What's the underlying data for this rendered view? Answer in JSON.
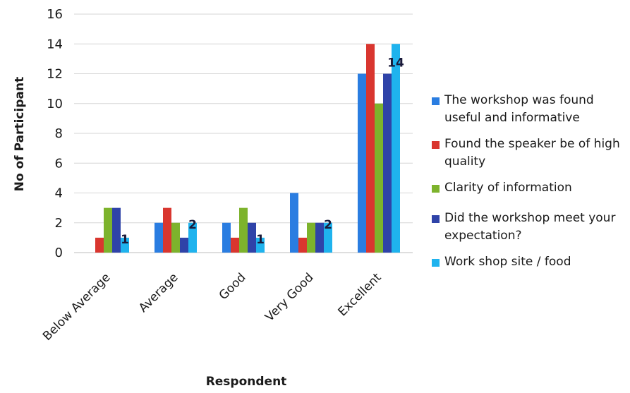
{
  "chart_data": {
    "type": "bar",
    "title": "",
    "xlabel": "Respondent",
    "ylabel": "No of Participant",
    "ylim": [
      0,
      16
    ],
    "yticks": [
      0,
      2,
      4,
      6,
      8,
      10,
      12,
      14,
      16
    ],
    "categories": [
      "Below Average",
      "Average",
      "Good",
      "Very Good",
      "Excellent"
    ],
    "series": [
      {
        "name": "The workshop was found useful and informative",
        "color": "#2a7de1",
        "values": [
          0,
          2,
          2,
          4,
          12
        ]
      },
      {
        "name": "Found the speaker be of high quality",
        "color": "#d9362f",
        "values": [
          1,
          3,
          1,
          1,
          14
        ]
      },
      {
        "name": "Clarity of information",
        "color": "#7db32c",
        "values": [
          3,
          2,
          3,
          2,
          10
        ]
      },
      {
        "name": "Did the workshop meet your expectation?",
        "color": "#2f43a8",
        "values": [
          3,
          1,
          2,
          2,
          12
        ]
      },
      {
        "name": "Work shop site / food",
        "color": "#1fb3ee",
        "values": [
          1,
          2,
          1,
          2,
          14
        ]
      }
    ],
    "data_labels": [
      {
        "category": 0,
        "series": 4,
        "text": "1"
      },
      {
        "category": 1,
        "series": 4,
        "text": "2"
      },
      {
        "category": 2,
        "series": 4,
        "text": "1"
      },
      {
        "category": 3,
        "series": 4,
        "text": "2"
      },
      {
        "category": 4,
        "series": 4,
        "text": "14"
      }
    ],
    "grid": true,
    "legend_position": "right"
  }
}
